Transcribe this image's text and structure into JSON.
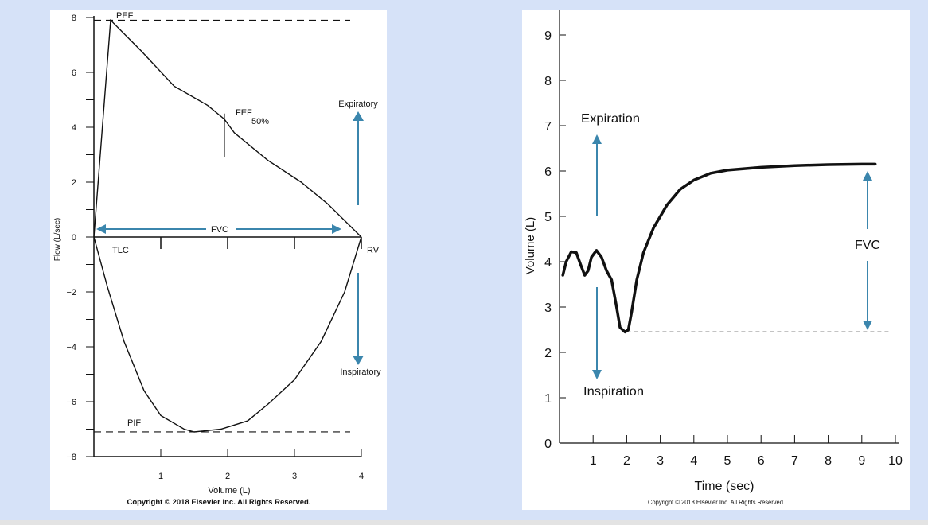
{
  "colors": {
    "background": "#d6e2f8",
    "panel": "#ffffff",
    "ink": "#111111",
    "arrow": "#3b86ad"
  },
  "chart_data": [
    {
      "type": "line",
      "xlabel": "Volume (L)",
      "ylabel": "Flow (L/sec)",
      "xlim": [
        0,
        4
      ],
      "ylim": [
        -8,
        8
      ],
      "x_ticks": [
        1,
        2,
        3,
        4
      ],
      "y_ticks": [
        8,
        6,
        4,
        2,
        0,
        -2,
        -4,
        -6,
        -8
      ],
      "y_tick_labels": [
        "8",
        "6",
        "4",
        "2",
        "0",
        "−2",
        "−4",
        "−6",
        "−8"
      ],
      "series": [
        {
          "name": "expiratory",
          "points": [
            [
              0,
              0
            ],
            [
              0.25,
              7.9
            ],
            [
              0.7,
              6.8
            ],
            [
              1.2,
              5.5
            ],
            [
              1.7,
              4.8
            ],
            [
              1.95,
              4.3
            ],
            [
              2.1,
              3.8
            ],
            [
              2.6,
              2.8
            ],
            [
              3.1,
              2.0
            ],
            [
              3.5,
              1.2
            ],
            [
              4.0,
              0
            ]
          ]
        },
        {
          "name": "inspiratory",
          "points": [
            [
              0,
              0
            ],
            [
              0.2,
              -1.8
            ],
            [
              0.45,
              -3.8
            ],
            [
              0.75,
              -5.6
            ],
            [
              1.0,
              -6.5
            ],
            [
              1.35,
              -7.0
            ],
            [
              1.5,
              -7.1
            ],
            [
              1.9,
              -7.0
            ],
            [
              2.3,
              -6.7
            ],
            [
              2.6,
              -6.1
            ],
            [
              3.0,
              -5.2
            ],
            [
              3.4,
              -3.8
            ],
            [
              3.75,
              -2.0
            ],
            [
              4.0,
              0
            ]
          ]
        }
      ],
      "reference_lines": [
        {
          "label": "PEF",
          "y": 7.9
        },
        {
          "label": "PIF",
          "y": -7.1
        }
      ],
      "annotations": {
        "pef": "PEF",
        "pif": "PIF",
        "fef_main": "FEF",
        "fef_sub": "50%",
        "fvc": "FVC",
        "tlc": "TLC",
        "rv": "RV",
        "expiratory": "Expiratory",
        "inspiratory": "Inspiratory"
      },
      "fef50_marker": {
        "x": 1.95,
        "y_from": 2.9,
        "y_to": 4.5
      },
      "copyright": "Copyright © 2018 Elsevier Inc. All Rights Reserved."
    },
    {
      "type": "line",
      "xlabel": "Time (sec)",
      "ylabel": "Volume (L)",
      "xlim": [
        0,
        10
      ],
      "ylim": [
        0,
        9
      ],
      "x_ticks": [
        1,
        2,
        3,
        4,
        5,
        6,
        7,
        8,
        9,
        10
      ],
      "y_ticks": [
        0,
        1,
        2,
        3,
        4,
        5,
        6,
        7,
        8,
        9
      ],
      "series": [
        {
          "name": "volume-time",
          "points": [
            [
              0.1,
              3.7
            ],
            [
              0.2,
              4.0
            ],
            [
              0.35,
              4.22
            ],
            [
              0.5,
              4.2
            ],
            [
              0.62,
              3.95
            ],
            [
              0.75,
              3.7
            ],
            [
              0.85,
              3.8
            ],
            [
              0.95,
              4.1
            ],
            [
              1.1,
              4.25
            ],
            [
              1.25,
              4.1
            ],
            [
              1.4,
              3.8
            ],
            [
              1.55,
              3.6
            ],
            [
              1.7,
              3.0
            ],
            [
              1.8,
              2.55
            ],
            [
              1.95,
              2.45
            ],
            [
              2.05,
              2.5
            ],
            [
              2.15,
              2.9
            ],
            [
              2.3,
              3.6
            ],
            [
              2.5,
              4.2
            ],
            [
              2.8,
              4.75
            ],
            [
              3.2,
              5.25
            ],
            [
              3.6,
              5.6
            ],
            [
              4.0,
              5.8
            ],
            [
              4.5,
              5.95
            ],
            [
              5.0,
              6.02
            ],
            [
              6.0,
              6.08
            ],
            [
              7.0,
              6.12
            ],
            [
              8.0,
              6.14
            ],
            [
              9.0,
              6.15
            ],
            [
              9.4,
              6.15
            ]
          ]
        }
      ],
      "reference_lines": [
        {
          "y": 2.45,
          "x_from": 2.0,
          "x_to": 10.0
        }
      ],
      "annotations": {
        "expiration": "Expiration",
        "inspiration": "Inspiration",
        "fvc": "FVC"
      },
      "copyright": "Copyright © 2018 Elsevier Inc. All Rights Reserved."
    }
  ]
}
